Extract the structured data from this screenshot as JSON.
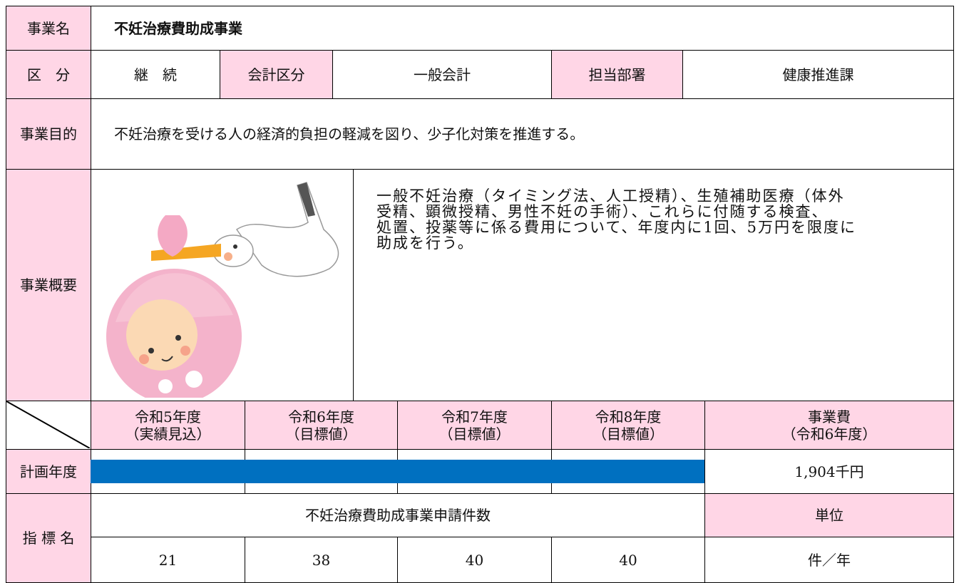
{
  "project_name": {
    "label": "事業名",
    "value": "不妊治療費助成事業"
  },
  "classification": {
    "label": "区　分",
    "value": "継　続"
  },
  "account": {
    "label": "会計区分",
    "value": "一般会計"
  },
  "department": {
    "label": "担当部署",
    "value": "健康推進課"
  },
  "purpose": {
    "label": "事業目的",
    "value": "不妊治療を受ける人の経済的負担の軽減を図り、少子化対策を推進する。"
  },
  "overview": {
    "label": "事業概要",
    "value": "一般不妊治療（タイミング法、人工授精）、生殖補助医療（体外\n受精、顕微授精、男性不妊の手術）、これらに付随する検査、\n処置、投薬等に係る費用について、年度内に1回、5万円を限度に\n助成を行う。"
  },
  "plan": {
    "columns": [
      {
        "year": "令和5年度",
        "note": "（実績見込）"
      },
      {
        "year": "令和6年度",
        "note": "（目標値）"
      },
      {
        "year": "令和7年度",
        "note": "（目標値）"
      },
      {
        "year": "令和8年度",
        "note": "（目標値）"
      }
    ],
    "cost_header": {
      "title": "事業費",
      "note": "（令和6年度）"
    },
    "row_label": "計画年度",
    "cost": "1,904千円"
  },
  "indicator": {
    "label": "指 標 名",
    "name": "不妊治療費助成事業申請件数",
    "unit_header": "単位",
    "values": [
      21,
      38,
      40,
      40
    ],
    "unit": "件／年"
  }
}
